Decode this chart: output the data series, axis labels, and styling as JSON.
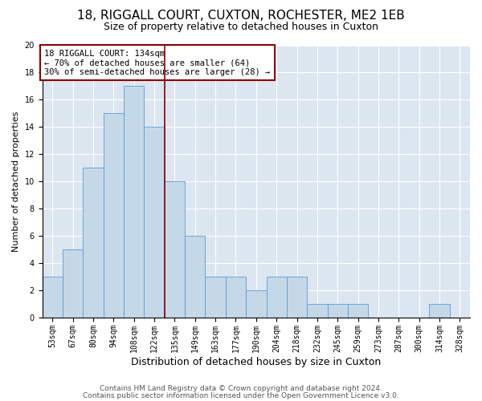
{
  "title1": "18, RIGGALL COURT, CUXTON, ROCHESTER, ME2 1EB",
  "title2": "Size of property relative to detached houses in Cuxton",
  "xlabel": "Distribution of detached houses by size in Cuxton",
  "ylabel": "Number of detached properties",
  "categories": [
    "53sqm",
    "67sqm",
    "80sqm",
    "94sqm",
    "108sqm",
    "122sqm",
    "135sqm",
    "149sqm",
    "163sqm",
    "177sqm",
    "190sqm",
    "204sqm",
    "218sqm",
    "232sqm",
    "245sqm",
    "259sqm",
    "273sqm",
    "287sqm",
    "300sqm",
    "314sqm",
    "328sqm"
  ],
  "bar_heights": [
    3,
    5,
    11,
    15,
    17,
    14,
    10,
    6,
    3,
    3,
    2,
    3,
    3,
    1,
    1,
    1,
    0,
    0,
    0,
    1,
    0
  ],
  "bar_color": "#c5d8e8",
  "bar_edge_color": "#5b9bd5",
  "highlight_line_color": "#8b0000",
  "annotation_box_text": "18 RIGGALL COURT: 134sqm\n← 70% of detached houses are smaller (64)\n30% of semi-detached houses are larger (28) →",
  "annotation_box_facecolor": "white",
  "annotation_box_edgecolor": "#8b0000",
  "ylim": [
    0,
    20
  ],
  "yticks": [
    0,
    2,
    4,
    6,
    8,
    10,
    12,
    14,
    16,
    18,
    20
  ],
  "background_color": "#dce6f0",
  "footer1": "Contains HM Land Registry data © Crown copyright and database right 2024.",
  "footer2": "Contains public sector information licensed under the Open Government Licence v3.0.",
  "title1_fontsize": 11,
  "title2_fontsize": 9,
  "xlabel_fontsize": 9,
  "ylabel_fontsize": 8,
  "tick_fontsize": 7,
  "annotation_fontsize": 7.5,
  "footer_fontsize": 6.5
}
